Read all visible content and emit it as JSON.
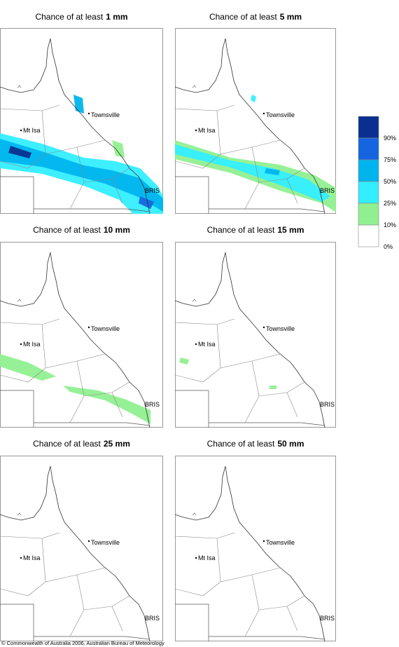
{
  "panels": [
    {
      "title": "Chance of at least",
      "threshold": "1 mm"
    },
    {
      "title": "Chance of at least",
      "threshold": "5 mm"
    },
    {
      "title": "Chance of at least",
      "threshold": "10 mm"
    },
    {
      "title": "Chance of at least",
      "threshold": "15 mm"
    },
    {
      "title": "Chance of at least",
      "threshold": "25 mm"
    },
    {
      "title": "Chance of at least",
      "threshold": "50 mm"
    }
  ],
  "places": [
    "Townsville",
    "Mt Isa",
    "BRIS"
  ],
  "legend": {
    "ticks": [
      {
        "value": 90,
        "label": "90%"
      },
      {
        "value": 75,
        "label": "75%"
      },
      {
        "value": 50,
        "label": "50%"
      },
      {
        "value": 25,
        "label": "25%"
      },
      {
        "value": 10,
        "label": "10%"
      },
      {
        "value": 0,
        "label": "0%"
      }
    ],
    "colors": [
      "#0a2f8f",
      "#1565e0",
      "#00b4ee",
      "#33eeff",
      "#90f090",
      "#ffffff"
    ]
  },
  "copyright": "© Commonwealth of Australia 2006, Australian Bureau of Meteorology"
}
